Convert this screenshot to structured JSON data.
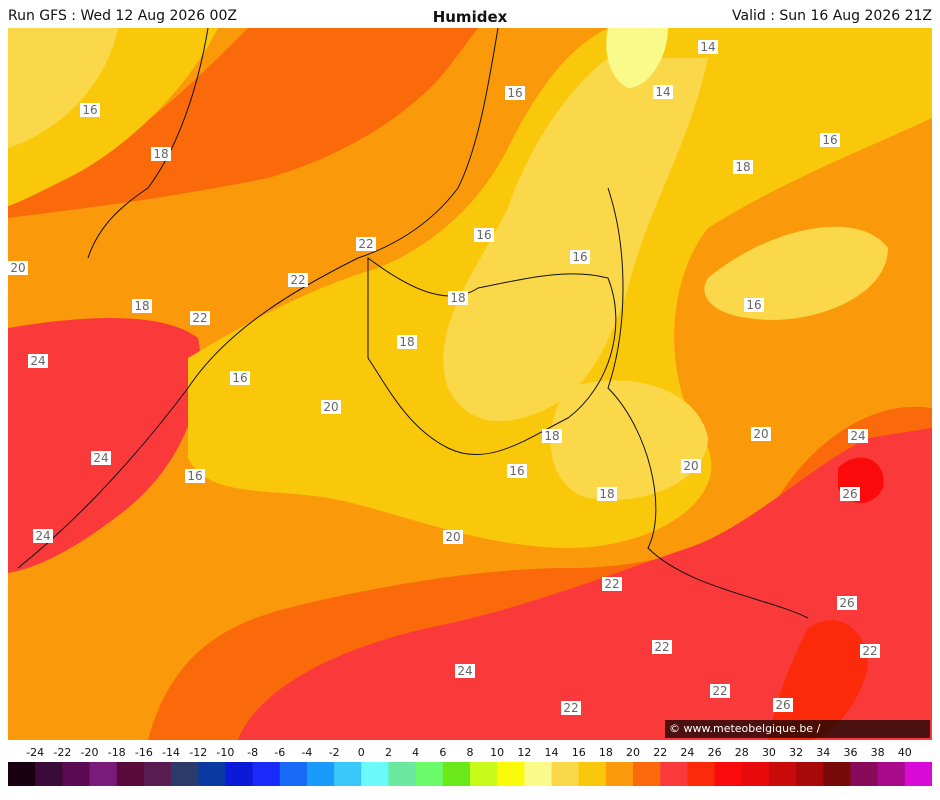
{
  "header": {
    "run": "Run GFS : Wed 12 Aug 2026 00Z",
    "title": "Humidex",
    "valid": "Valid : Sun 16 Aug 2026 21Z"
  },
  "credit": "© www.meteobelgique.be / www.meteobelgie.be",
  "legend": {
    "ticks": [
      "-24",
      "-22",
      "-20",
      "-18",
      "-16",
      "-14",
      "-12",
      "-10",
      "-8",
      "-6",
      "-4",
      "-2",
      "0",
      "2",
      "4",
      "6",
      "8",
      "10",
      "12",
      "14",
      "16",
      "18",
      "20",
      "22",
      "24",
      "26",
      "28",
      "30",
      "32",
      "34",
      "36",
      "38",
      "40"
    ],
    "colors": [
      "#1a0010",
      "#3a0a38",
      "#5a0a52",
      "#7a1a7a",
      "#5a0a3a",
      "#5a1a52",
      "#2a3a6a",
      "#0a3aa0",
      "#0a1ad8",
      "#1a2afa",
      "#1a6afa",
      "#1a9afa",
      "#3ac8fa",
      "#6afafa",
      "#6ae8a0",
      "#6afa6a",
      "#6ae81a",
      "#c8fa1a",
      "#fafa0a",
      "#fafa8a",
      "#fad84a",
      "#fac80a",
      "#fa9a0a",
      "#fa6a0a",
      "#fa3a3a",
      "#fa2a0a",
      "#fa0a0a",
      "#e80a0a",
      "#c80a0a",
      "#a80a0a",
      "#780a0a",
      "#880a5a",
      "#a80a8a",
      "#d80ad8"
    ]
  },
  "map": {
    "contour_labels": [
      "14",
      "14",
      "16",
      "16",
      "16",
      "16",
      "16",
      "16",
      "16",
      "16",
      "16",
      "18",
      "18",
      "18",
      "18",
      "18",
      "18",
      "18",
      "20",
      "20",
      "20",
      "20",
      "20",
      "22",
      "22",
      "22",
      "22",
      "22",
      "22",
      "22",
      "22",
      "24",
      "24",
      "24",
      "24",
      "24",
      "26",
      "26",
      "26"
    ]
  }
}
